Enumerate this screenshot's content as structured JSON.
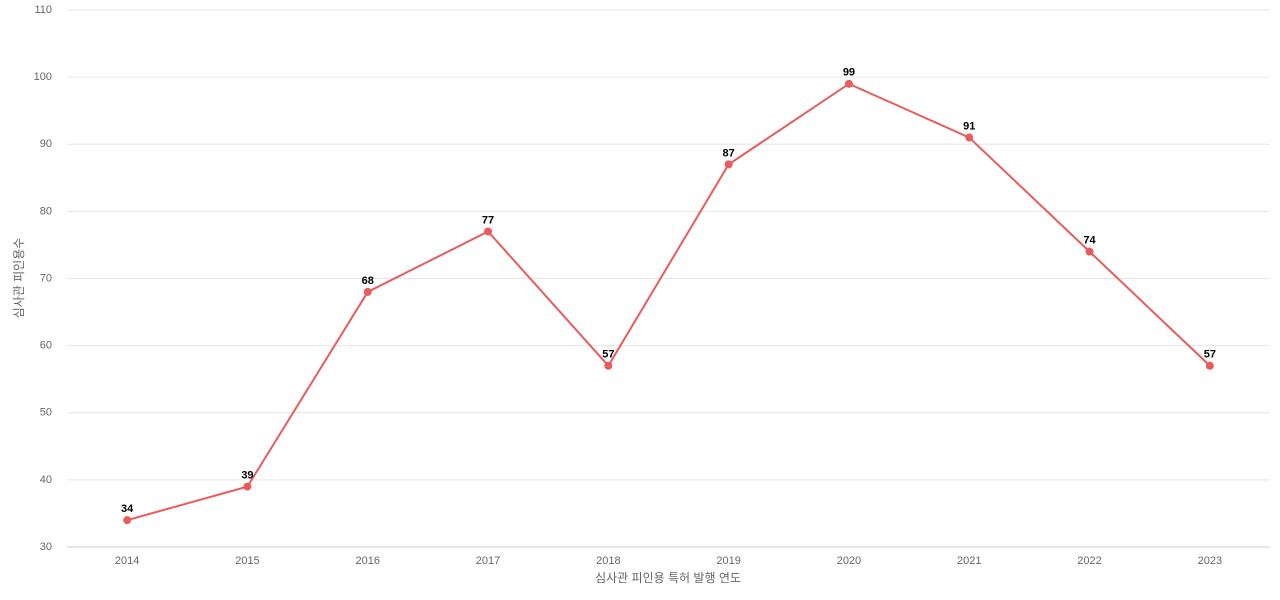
{
  "chart_data": {
    "type": "line",
    "x_label": "심사관 피인용 특허 발행 연도",
    "y_label": "심사관 피인용수",
    "categories": [
      "2014",
      "2015",
      "2016",
      "2017",
      "2018",
      "2019",
      "2020",
      "2021",
      "2022",
      "2023"
    ],
    "series": [
      {
        "name": "심사관 피인용수",
        "color": "#e85c5c",
        "values": [
          34,
          39,
          68,
          77,
          57,
          87,
          99,
          91,
          74,
          57
        ]
      }
    ],
    "ylim": [
      30,
      110
    ],
    "yticks": [
      30,
      40,
      50,
      60,
      70,
      80,
      90,
      100,
      110
    ],
    "grid": true
  }
}
